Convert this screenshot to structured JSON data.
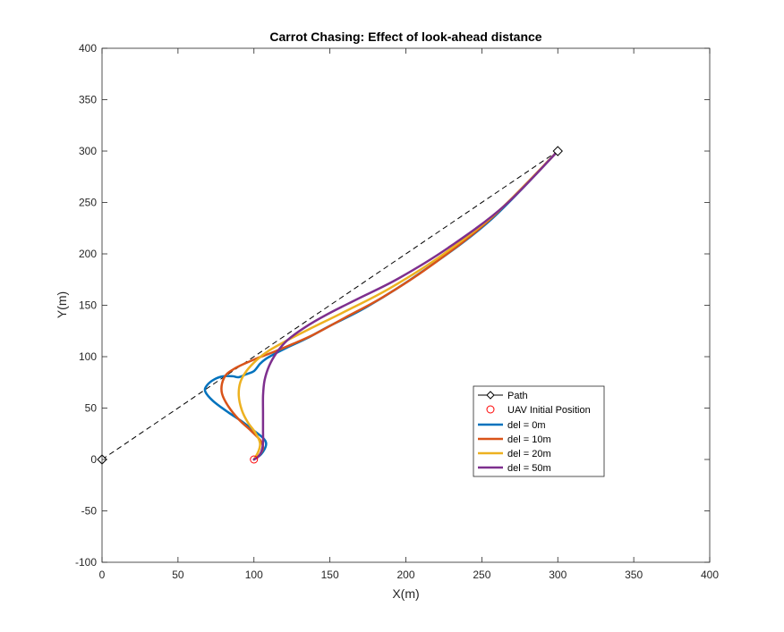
{
  "chart_data": {
    "type": "line",
    "title": "Carrot Chasing: Effect of look-ahead distance",
    "xlabel": "X(m)",
    "ylabel": "Y(m)",
    "xlim": [
      0,
      400
    ],
    "ylim": [
      -100,
      400
    ],
    "xticks": [
      0,
      50,
      100,
      150,
      200,
      250,
      300,
      350,
      400
    ],
    "yticks": [
      -100,
      -50,
      0,
      50,
      100,
      150,
      200,
      250,
      300,
      350,
      400
    ],
    "grid": false,
    "legend_position": "lower-right",
    "path": {
      "name": "Path",
      "color": "#000000",
      "line_style": "dashed",
      "marker": "diamond",
      "points": [
        [
          0,
          0
        ],
        [
          300,
          300
        ]
      ]
    },
    "initial_position": {
      "name": "UAV Initial Position",
      "color": "#ff0000",
      "marker": "circle",
      "point": [
        100,
        0
      ]
    },
    "series": [
      {
        "name": "del = 0m",
        "color": "#0072bd",
        "points": [
          [
            100,
            0
          ],
          [
            104,
            4
          ],
          [
            107,
            10
          ],
          [
            108,
            16
          ],
          [
            106,
            21
          ],
          [
            100,
            28
          ],
          [
            92,
            37
          ],
          [
            82,
            47
          ],
          [
            73,
            57
          ],
          [
            68,
            66
          ],
          [
            69,
            72
          ],
          [
            74,
            78
          ],
          [
            80,
            81
          ],
          [
            86,
            81
          ],
          [
            90,
            80
          ],
          [
            95,
            83
          ],
          [
            100,
            86
          ],
          [
            104,
            93
          ],
          [
            108,
            98
          ],
          [
            114,
            103
          ],
          [
            122,
            109
          ],
          [
            135,
            118
          ],
          [
            150,
            130
          ],
          [
            175,
            149
          ],
          [
            210,
            182
          ],
          [
            255,
            232
          ],
          [
            300,
            300
          ]
        ]
      },
      {
        "name": "del = 10m",
        "color": "#d95319",
        "points": [
          [
            100,
            0
          ],
          [
            104,
            5
          ],
          [
            106,
            12
          ],
          [
            104,
            19
          ],
          [
            98,
            28
          ],
          [
            90,
            39
          ],
          [
            83,
            52
          ],
          [
            79,
            64
          ],
          [
            79,
            74
          ],
          [
            82,
            83
          ],
          [
            88,
            89
          ],
          [
            95,
            94
          ],
          [
            103,
            99
          ],
          [
            112,
            104
          ],
          [
            125,
            112
          ],
          [
            140,
            122
          ],
          [
            160,
            138
          ],
          [
            185,
            158
          ],
          [
            215,
            187
          ],
          [
            255,
            233
          ],
          [
            300,
            300
          ]
        ]
      },
      {
        "name": "del = 20m",
        "color": "#edb120",
        "points": [
          [
            100,
            0
          ],
          [
            103,
            8
          ],
          [
            104,
            16
          ],
          [
            101,
            26
          ],
          [
            96,
            36
          ],
          [
            92,
            48
          ],
          [
            90,
            62
          ],
          [
            91,
            75
          ],
          [
            95,
            86
          ],
          [
            102,
            97
          ],
          [
            110,
            106
          ],
          [
            122,
            116
          ],
          [
            138,
            128
          ],
          [
            160,
            144
          ],
          [
            190,
            167
          ],
          [
            225,
            200
          ],
          [
            262,
            243
          ],
          [
            300,
            300
          ]
        ]
      },
      {
        "name": "del = 50m",
        "color": "#7e2f8e",
        "points": [
          [
            100,
            0
          ],
          [
            103,
            3
          ],
          [
            105,
            8
          ],
          [
            106,
            16
          ],
          [
            106,
            28
          ],
          [
            106,
            45
          ],
          [
            106,
            62
          ],
          [
            107,
            77
          ],
          [
            110,
            91
          ],
          [
            115,
            104
          ],
          [
            122,
            116
          ],
          [
            133,
            128
          ],
          [
            148,
            141
          ],
          [
            168,
            156
          ],
          [
            195,
            176
          ],
          [
            228,
            206
          ],
          [
            265,
            247
          ],
          [
            300,
            300
          ]
        ]
      }
    ]
  }
}
